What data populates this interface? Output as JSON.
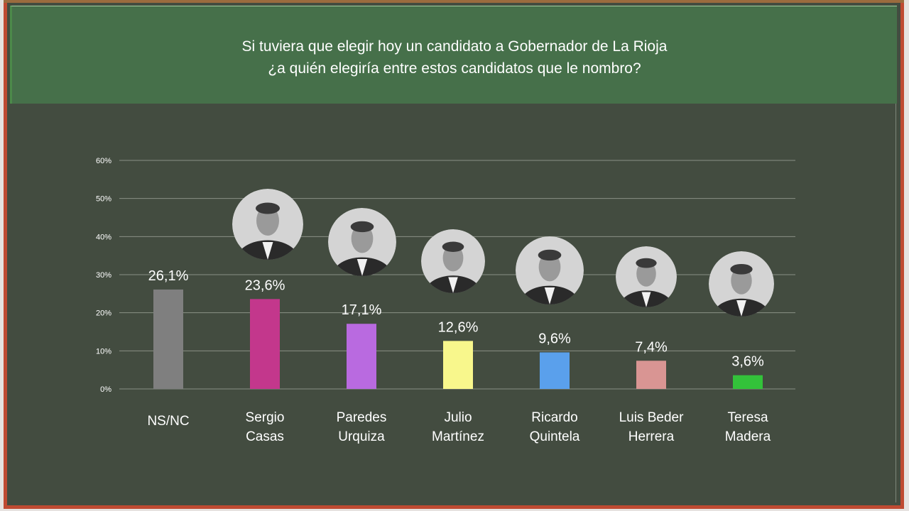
{
  "title_lines": [
    "Si tuviera que elegir hoy un candidato a Gobernador de La Rioja",
    "¿a quién elegiría entre estos candidatos que le nombro?"
  ],
  "chart_data": {
    "type": "bar",
    "title": "Si tuviera que elegir hoy un candidato a Gobernador de La Rioja ¿a quién elegiría entre estos candidatos que le nombro?",
    "categories": [
      [
        "NS/NC"
      ],
      [
        "Sergio",
        "Casas"
      ],
      [
        "Paredes",
        "Urquiza"
      ],
      [
        "Julio",
        "Martínez"
      ],
      [
        "Ricardo",
        "Quintela"
      ],
      [
        "Luis Beder",
        "Herrera"
      ],
      [
        "Teresa",
        "Madera"
      ]
    ],
    "values": [
      26.1,
      23.6,
      17.1,
      12.6,
      9.6,
      7.4,
      3.6
    ],
    "data_labels": [
      "26,1%",
      "23,6%",
      "17,1%",
      "12,6%",
      "9,6%",
      "7,4%",
      "3,6%"
    ],
    "colors": [
      "#7f7f7f",
      "#c3378c",
      "#b96ae0",
      "#f8f78c",
      "#5aa0ec",
      "#d99593",
      "#33c23a"
    ],
    "candidate_photos": [
      false,
      true,
      true,
      true,
      true,
      true,
      true
    ],
    "ylim": [
      0,
      60
    ],
    "yticks": [
      "0%",
      "10%",
      "20%",
      "30%",
      "40%",
      "50%",
      "60%"
    ],
    "grid": true,
    "xlabel": "",
    "ylabel": ""
  }
}
